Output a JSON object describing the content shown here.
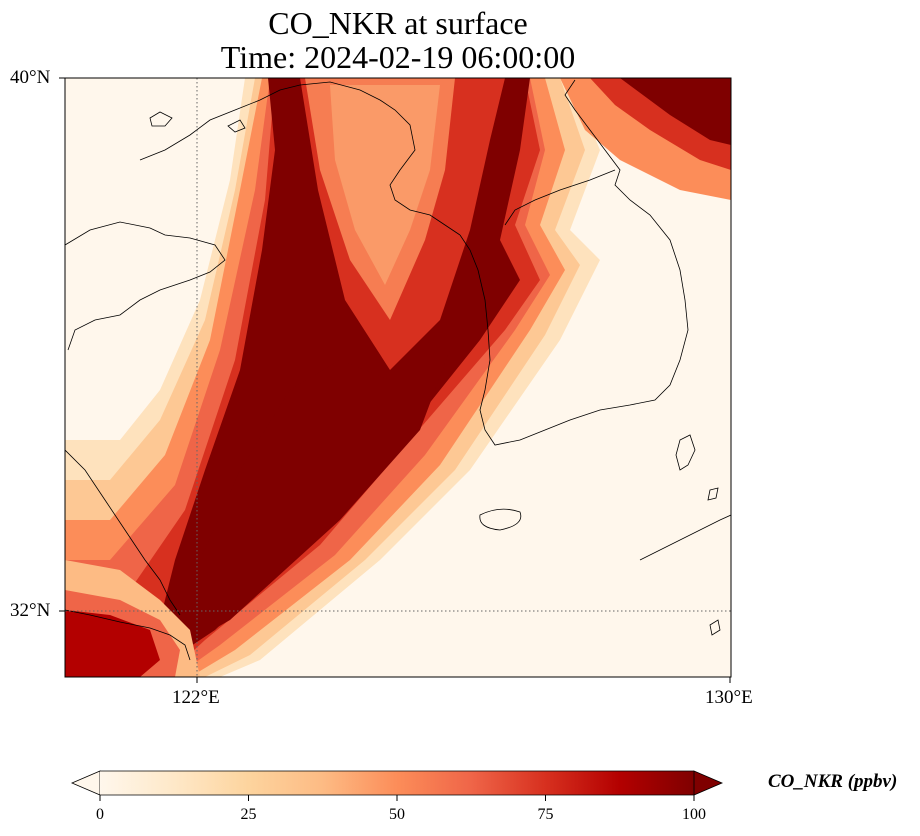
{
  "title": {
    "line1": "CO_NKR at surface",
    "line2": "Time: 2024-02-19 06:00:00"
  },
  "map": {
    "projection": "PlateCarree",
    "extent": {
      "lon_min": 120,
      "lon_max": 130,
      "lat_min": 31,
      "lat_max": 40
    },
    "gridlines": {
      "lons": [
        122
      ],
      "lats": [
        32
      ],
      "style": "dotted"
    },
    "lat_labels": [
      "40°N",
      "32°N"
    ],
    "lon_labels": [
      "122°E",
      "130°E"
    ],
    "coastlines": true
  },
  "colorbar": {
    "label": "CO_NKR (ppbv)",
    "colormap": "OrRd",
    "min": 0,
    "max": 100,
    "extend": "both",
    "ticks": [
      "0",
      "25",
      "50",
      "75",
      "100"
    ],
    "colors": [
      "#fff7ec",
      "#fee8c8",
      "#fdd49e",
      "#fdbb84",
      "#fc8d59",
      "#ef6548",
      "#d7301f",
      "#b30000",
      "#7f0000"
    ]
  }
}
